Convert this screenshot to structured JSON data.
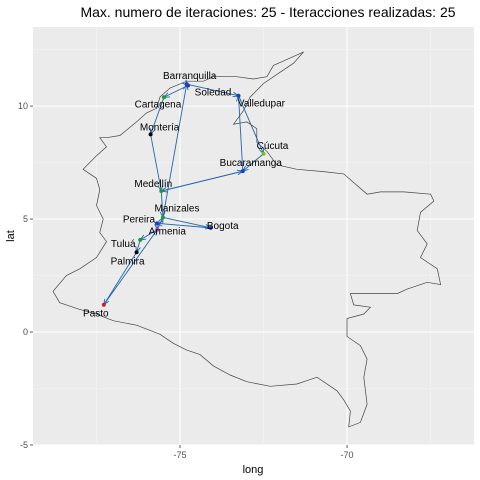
{
  "chart_data": {
    "type": "line",
    "title": "Max. numero de iteraciones: 25  - Iteracciones realizadas:  25",
    "xlabel": "long",
    "ylabel": "lat",
    "xlim": [
      -79.4,
      -66.2
    ],
    "ylim": [
      -5,
      13.5
    ],
    "x_ticks": [
      -75,
      -70
    ],
    "y_ticks": [
      -5,
      0,
      5,
      10
    ],
    "grid": true,
    "cities": [
      {
        "name": "Barranquilla",
        "long": -74.8,
        "lat": 10.97,
        "color": "#1f3fbf"
      },
      {
        "name": "Soledad",
        "long": -74.76,
        "lat": 10.91,
        "color": "#1f3fbf"
      },
      {
        "name": "Cartagena",
        "long": -75.48,
        "lat": 10.39,
        "color": "#1a9c2e"
      },
      {
        "name": "Valledupar",
        "long": -73.25,
        "lat": 10.46,
        "color": "#1f3fbf"
      },
      {
        "name": "Montería",
        "long": -75.88,
        "lat": 8.75,
        "color": "#000000"
      },
      {
        "name": "Cúcuta",
        "long": -72.5,
        "lat": 7.89,
        "color": "#7cbf1a"
      },
      {
        "name": "Bucaramanga",
        "long": -73.12,
        "lat": 7.12,
        "color": "#1f3fbf"
      },
      {
        "name": "Medellín",
        "long": -75.56,
        "lat": 6.24,
        "color": "#1a9c2e"
      },
      {
        "name": "Manizales",
        "long": -75.51,
        "lat": 5.07,
        "color": "#1a9c2e"
      },
      {
        "name": "Bogota",
        "long": -74.08,
        "lat": 4.61,
        "color": "#1f3fbf"
      },
      {
        "name": "Pereira",
        "long": -75.69,
        "lat": 4.81,
        "color": "#1f3fbf"
      },
      {
        "name": "Armenia",
        "long": -75.68,
        "lat": 4.53,
        "color": "#b040c0"
      },
      {
        "name": "Tuluá",
        "long": -76.19,
        "lat": 4.08,
        "color": "#1a9c2e"
      },
      {
        "name": "Palmira",
        "long": -76.3,
        "lat": 3.53,
        "color": "#000000"
      },
      {
        "name": "Pasto",
        "long": -77.28,
        "lat": 1.21,
        "color": "#cc2020"
      }
    ],
    "route": [
      "Barranquilla",
      "Soledad",
      "Cartagena",
      "Montería",
      "Medellín",
      "Bucaramanga",
      "Valledupar",
      "Cúcuta",
      "Bucaramanga",
      "Medellín",
      "Manizales",
      "Bogota",
      "Pereira",
      "Armenia",
      "Tuluá",
      "Palmira",
      "Pasto",
      "Armenia",
      "Manizales",
      "Barranquilla",
      "Valledupar"
    ],
    "route_color": "#2166ac",
    "border_color": "#444444",
    "colombia_outline": [
      [
        -71.3,
        12.4
      ],
      [
        -71.9,
        12.0
      ],
      [
        -72.2,
        11.8
      ],
      [
        -72.4,
        11.3
      ],
      [
        -72.8,
        11.2
      ],
      [
        -73.3,
        11.3
      ],
      [
        -74.0,
        11.3
      ],
      [
        -74.3,
        11.1
      ],
      [
        -74.8,
        11.1
      ],
      [
        -75.3,
        10.8
      ],
      [
        -75.6,
        10.4
      ],
      [
        -75.7,
        9.9
      ],
      [
        -76.0,
        9.7
      ],
      [
        -76.3,
        9.3
      ],
      [
        -76.8,
        8.7
      ],
      [
        -77.2,
        8.6
      ],
      [
        -77.4,
        8.6
      ],
      [
        -77.2,
        8.2
      ],
      [
        -77.5,
        7.8
      ],
      [
        -77.9,
        7.2
      ],
      [
        -77.5,
        6.8
      ],
      [
        -77.4,
        6.3
      ],
      [
        -77.5,
        5.6
      ],
      [
        -77.3,
        5.0
      ],
      [
        -77.4,
        4.4
      ],
      [
        -77.2,
        4.0
      ],
      [
        -77.5,
        3.3
      ],
      [
        -78.0,
        2.8
      ],
      [
        -78.4,
        2.5
      ],
      [
        -78.8,
        1.8
      ],
      [
        -78.6,
        1.3
      ],
      [
        -78.0,
        1.0
      ],
      [
        -77.5,
        0.8
      ],
      [
        -77.0,
        0.5
      ],
      [
        -76.3,
        0.3
      ],
      [
        -75.6,
        -0.1
      ],
      [
        -75.2,
        -0.5
      ],
      [
        -74.8,
        -0.8
      ],
      [
        -74.4,
        -1.0
      ],
      [
        -74.0,
        -1.5
      ],
      [
        -73.5,
        -1.9
      ],
      [
        -73.0,
        -2.2
      ],
      [
        -72.3,
        -2.4
      ],
      [
        -71.5,
        -2.3
      ],
      [
        -70.9,
        -2.0
      ],
      [
        -70.3,
        -2.6
      ],
      [
        -70.1,
        -3.0
      ],
      [
        -69.9,
        -3.5
      ],
      [
        -69.95,
        -4.2
      ],
      [
        -69.6,
        -4.0
      ],
      [
        -69.4,
        -3.2
      ],
      [
        -69.5,
        -2.0
      ],
      [
        -69.4,
        -1.2
      ],
      [
        -69.6,
        -0.6
      ],
      [
        -70.0,
        -0.2
      ],
      [
        -70.0,
        0.6
      ],
      [
        -69.5,
        0.8
      ],
      [
        -69.3,
        1.1
      ],
      [
        -69.8,
        1.2
      ],
      [
        -69.9,
        1.7
      ],
      [
        -68.5,
        1.7
      ],
      [
        -68.2,
        1.9
      ],
      [
        -67.6,
        2.2
      ],
      [
        -67.2,
        2.1
      ],
      [
        -67.3,
        2.8
      ],
      [
        -67.8,
        3.3
      ],
      [
        -67.6,
        3.9
      ],
      [
        -67.9,
        4.5
      ],
      [
        -67.8,
        5.3
      ],
      [
        -67.4,
        5.8
      ],
      [
        -67.5,
        6.1
      ],
      [
        -68.3,
        6.2
      ],
      [
        -69.0,
        6.2
      ],
      [
        -69.4,
        6.1
      ],
      [
        -70.1,
        7.0
      ],
      [
        -70.7,
        7.1
      ],
      [
        -71.5,
        7.2
      ],
      [
        -72.1,
        7.4
      ],
      [
        -72.4,
        8.0
      ],
      [
        -72.7,
        8.4
      ],
      [
        -72.7,
        9.0
      ],
      [
        -73.0,
        9.3
      ],
      [
        -73.4,
        9.2
      ],
      [
        -73.1,
        9.8
      ],
      [
        -72.9,
        10.4
      ],
      [
        -72.5,
        11.0
      ],
      [
        -72.0,
        11.5
      ],
      [
        -71.6,
        11.9
      ],
      [
        -71.3,
        12.4
      ]
    ]
  }
}
